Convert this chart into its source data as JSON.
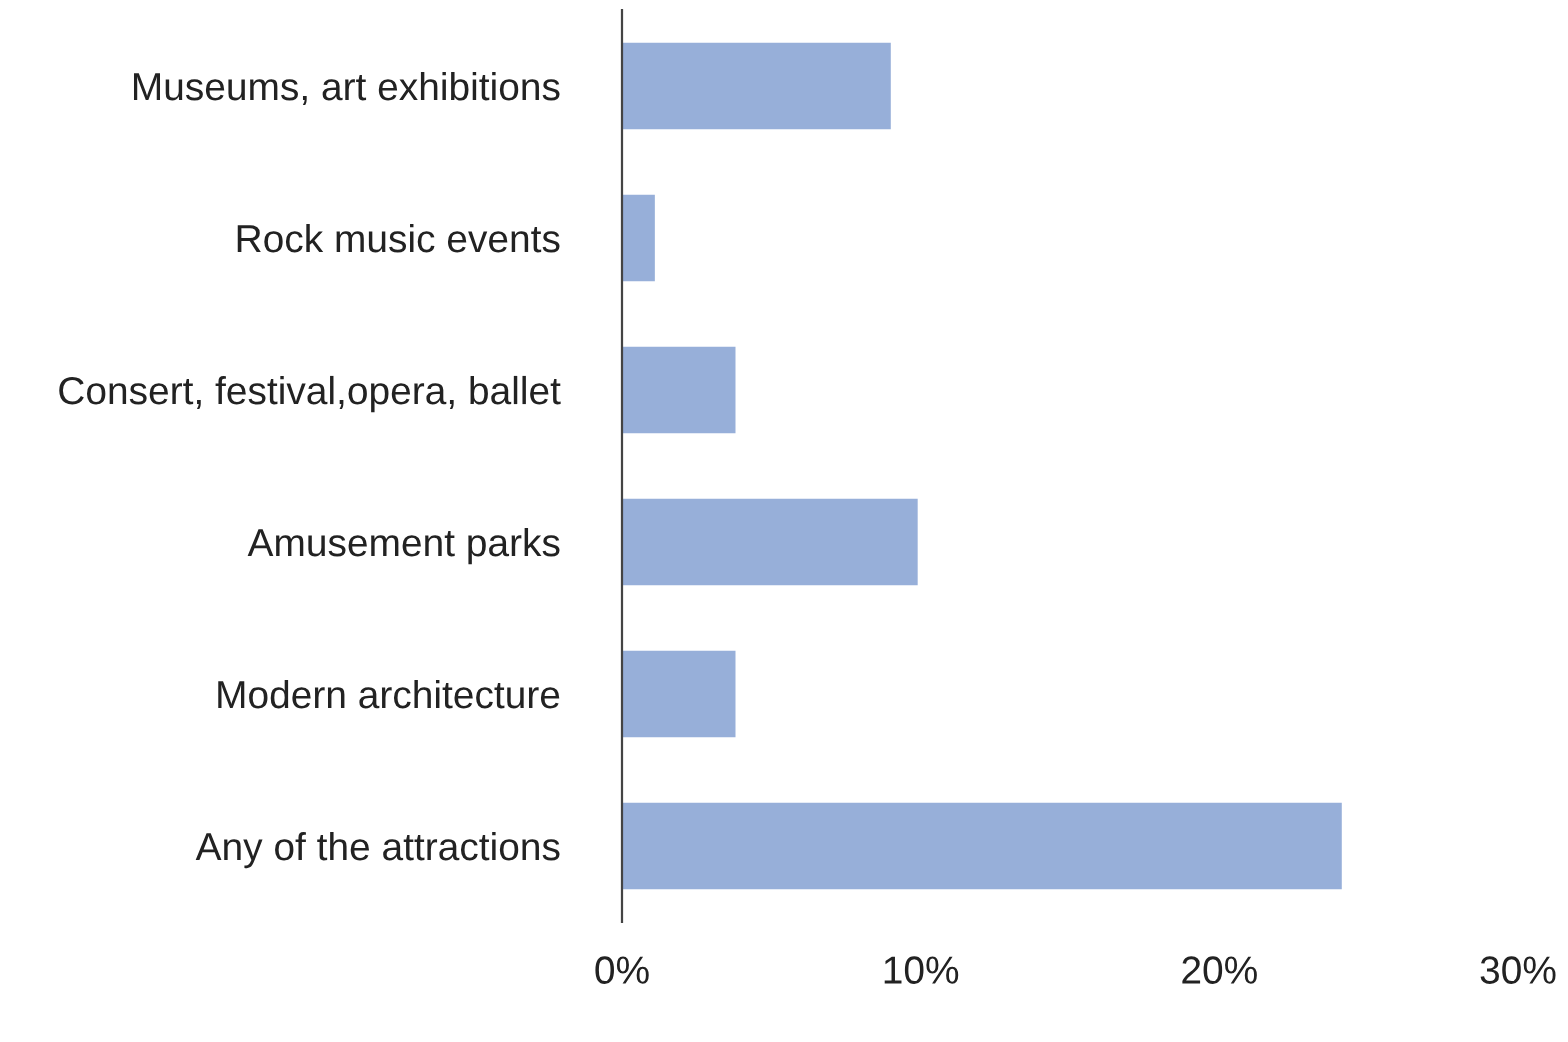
{
  "chart_data": {
    "type": "bar",
    "orientation": "horizontal",
    "categories": [
      "Museums, art exhibitions",
      "Rock music events",
      "Consert, festival,opera, ballet",
      "Amusement parks",
      "Modern architecture",
      "Any of the attractions"
    ],
    "values": [
      9.0,
      1.1,
      3.8,
      9.9,
      3.8,
      24.1
    ],
    "color": "#97afd9",
    "xlim": [
      0,
      30
    ],
    "xticks": [
      {
        "value": 0,
        "label": "0%"
      },
      {
        "value": 10,
        "label": "10%"
      },
      {
        "value": 20,
        "label": "20%"
      },
      {
        "value": 30,
        "label": "30%"
      }
    ],
    "grid": false,
    "legend": false
  }
}
